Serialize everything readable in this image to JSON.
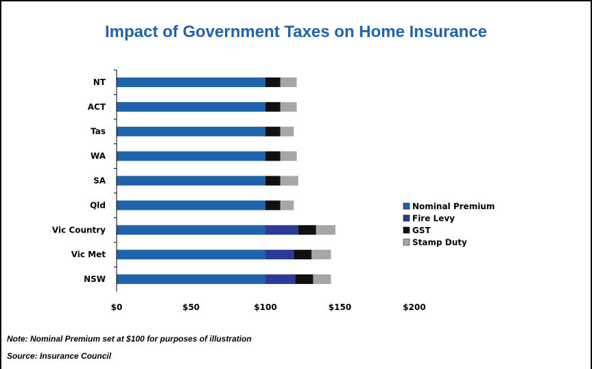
{
  "chart_data": {
    "type": "bar",
    "orientation": "horizontal",
    "stacked": true,
    "title": "Impact of Government Taxes on Home Insurance",
    "categories": [
      "NT",
      "ACT",
      "Tas",
      "WA",
      "SA",
      "Qld",
      "Vic Country",
      "Vic Met",
      "NSW"
    ],
    "series": [
      {
        "name": "Nominal Premium",
        "color": "#1f63ad",
        "values": [
          100,
          100,
          100,
          100,
          100,
          100,
          100,
          100,
          100
        ]
      },
      {
        "name": "Fire Levy",
        "color": "#2b3a9a",
        "values": [
          0,
          0,
          0,
          0,
          0,
          0,
          22,
          19,
          20
        ]
      },
      {
        "name": "GST",
        "color": "#111111",
        "values": [
          10,
          10,
          10,
          10,
          10,
          10,
          12,
          12,
          12
        ]
      },
      {
        "name": "Stamp Duty",
        "color": "#a6a6a6",
        "values": [
          11,
          11,
          9,
          11,
          12,
          9,
          13,
          13,
          12
        ]
      }
    ],
    "xlim": [
      0,
      200
    ],
    "xticks": [
      "$0",
      "$50",
      "$100",
      "$150",
      "$200"
    ],
    "xtick_values": [
      0,
      50,
      100,
      150,
      200
    ],
    "legend_position": "right",
    "grid": false
  },
  "notes": {
    "note": "Note: Nominal Premium set at $100 for purposes of illustration",
    "source": "Source: Insurance Council"
  }
}
